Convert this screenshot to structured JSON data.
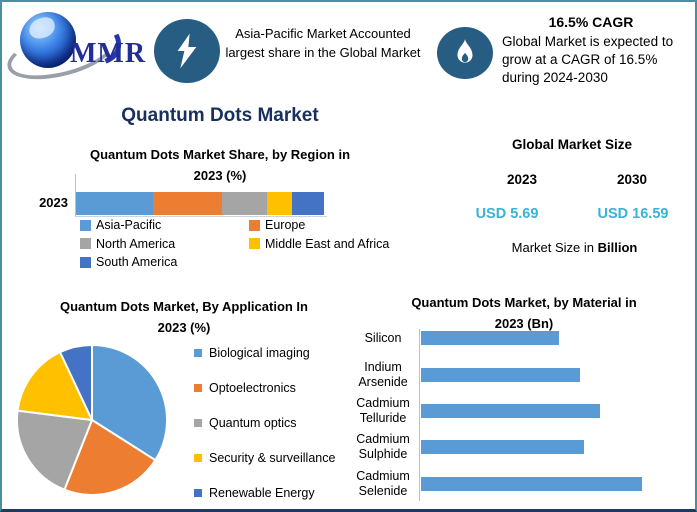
{
  "page_title": "Quantum Dots Market",
  "header": {
    "logo_text": "MMR",
    "banner1": {
      "icon": "lightning-icon",
      "text": "Asia-Pacific Market Accounted largest share in the Global Market"
    },
    "banner2": {
      "icon": "flame-icon",
      "title": "16.5% CAGR",
      "text": "Global Market is expected to grow at a CAGR of 16.5% during 2024-2030"
    },
    "badge_color": "#275d83"
  },
  "market_size": {
    "title": "Global Market Size",
    "year1": "2023",
    "year2": "2030",
    "value1": "USD 5.69",
    "value2": "USD 16.59",
    "caption_prefix": "Market Size in ",
    "caption_bold": "Billion",
    "value_color": "#39b3d5"
  },
  "chart_data": [
    {
      "id": "region_share",
      "type": "bar",
      "subtype": "stacked-horizontal",
      "title": "Quantum Dots Market Share, by Region  in 2023 (%)",
      "title_line1": "Quantum Dots Market Share, by Region  in",
      "title_line2": "2023 (%)",
      "categories": [
        "2023"
      ],
      "series": [
        {
          "name": "Asia-Pacific",
          "values": [
            31
          ],
          "color": "#5B9BD5"
        },
        {
          "name": "Europe",
          "values": [
            28
          ],
          "color": "#ED7D31"
        },
        {
          "name": "North America",
          "values": [
            18
          ],
          "color": "#A5A5A5"
        },
        {
          "name": "Middle East and Africa",
          "values": [
            10
          ],
          "color": "#FFC000"
        },
        {
          "name": "South America",
          "values": [
            13
          ],
          "color": "#4472C4"
        }
      ],
      "unit": "%",
      "legend_position": "bottom",
      "grid": false
    },
    {
      "id": "application_share",
      "type": "pie",
      "title": "Quantum Dots Market, By Application In 2023 (%)",
      "title_line1": "Quantum Dots Market, By Application In",
      "title_line2": "2023 (%)",
      "slices": [
        {
          "label": "Biological imaging",
          "value": 34,
          "color": "#5B9BD5"
        },
        {
          "label": "Optoelectronics",
          "value": 22,
          "color": "#ED7D31"
        },
        {
          "label": "Quantum optics",
          "value": 21,
          "color": "#A5A5A5"
        },
        {
          "label": "Security & surveillance",
          "value": 16,
          "color": "#FFC000"
        },
        {
          "label": "Renewable Energy",
          "value": 7,
          "color": "#4472C4"
        }
      ],
      "start_angle_deg": 0,
      "clockwise": true,
      "unit": "%",
      "legend_position": "right"
    },
    {
      "id": "material_size",
      "type": "bar",
      "subtype": "horizontal",
      "title": "Quantum Dots Market, by Material in 2023 (Bn)",
      "title_line1": "Quantum Dots Market, by Material in",
      "title_line2": "2023 (Bn)",
      "categories": [
        "Silicon",
        "Indium Arsenide",
        "Cadmium Telluride",
        "Cadmium Sulphide",
        "Cadmium Selenide"
      ],
      "values": [
        0.91,
        1.05,
        1.18,
        1.08,
        1.46
      ],
      "bar_color": "#5B9BD5",
      "xlim": [
        0,
        1.6
      ],
      "unit": "Bn",
      "grid": false
    }
  ]
}
